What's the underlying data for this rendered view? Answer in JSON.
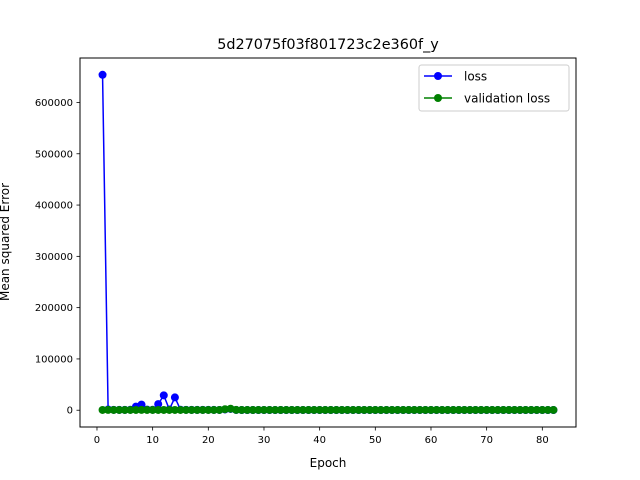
{
  "chart_data": {
    "type": "line",
    "title": "5d27075f03f801723c2e360f_y",
    "xlabel": "Epoch",
    "ylabel": "Mean squared Error",
    "xlim": [
      -3.05,
      86.05
    ],
    "ylim": [
      -32700,
      686700
    ],
    "xticks": [
      0,
      10,
      20,
      30,
      40,
      50,
      60,
      70,
      80
    ],
    "yticks": [
      0,
      100000,
      200000,
      300000,
      400000,
      500000,
      600000
    ],
    "grid": false,
    "legend_position": "top-right",
    "series": [
      {
        "name": "loss",
        "color": "#0000ff",
        "x": [
          1,
          2,
          3,
          4,
          5,
          6,
          7,
          8,
          9,
          10,
          11,
          12,
          13,
          14,
          15,
          16,
          17,
          18,
          19,
          20,
          21,
          22,
          23,
          24,
          25,
          26,
          27,
          28,
          29,
          30,
          31,
          32,
          33,
          34,
          35,
          36,
          37,
          38,
          39,
          40,
          41,
          42,
          43,
          44,
          45,
          46,
          47,
          48,
          49,
          50,
          51,
          52,
          53,
          54,
          55,
          56,
          57,
          58,
          59,
          60,
          61,
          62,
          63,
          64,
          65,
          66,
          67,
          68,
          69,
          70,
          71,
          72,
          73,
          74,
          75,
          76,
          77,
          78,
          79,
          80,
          81,
          82
        ],
        "values": [
          654000,
          1500,
          800,
          600,
          700,
          900,
          7000,
          11000,
          1200,
          900,
          12000,
          29000,
          1500,
          25000,
          1000,
          800,
          700,
          600,
          700,
          800,
          600,
          500,
          1500,
          2500,
          500,
          400,
          400,
          400,
          400,
          400,
          400,
          400,
          400,
          400,
          400,
          400,
          400,
          400,
          400,
          400,
          400,
          400,
          400,
          400,
          400,
          400,
          400,
          400,
          400,
          400,
          400,
          400,
          400,
          400,
          400,
          400,
          400,
          400,
          400,
          400,
          400,
          400,
          400,
          400,
          400,
          400,
          400,
          400,
          400,
          400,
          400,
          400,
          400,
          400,
          400,
          400,
          400,
          400,
          400,
          400,
          400,
          400
        ]
      },
      {
        "name": "validation loss",
        "color": "#008000",
        "x": [
          1,
          2,
          3,
          4,
          5,
          6,
          7,
          8,
          9,
          10,
          11,
          12,
          13,
          14,
          15,
          16,
          17,
          18,
          19,
          20,
          21,
          22,
          23,
          24,
          25,
          26,
          27,
          28,
          29,
          30,
          31,
          32,
          33,
          34,
          35,
          36,
          37,
          38,
          39,
          40,
          41,
          42,
          43,
          44,
          45,
          46,
          47,
          48,
          49,
          50,
          51,
          52,
          53,
          54,
          55,
          56,
          57,
          58,
          59,
          60,
          61,
          62,
          63,
          64,
          65,
          66,
          67,
          68,
          69,
          70,
          71,
          72,
          73,
          74,
          75,
          76,
          77,
          78,
          79,
          80,
          81,
          82
        ],
        "values": [
          500,
          600,
          500,
          500,
          500,
          500,
          500,
          600,
          500,
          500,
          500,
          500,
          500,
          500,
          500,
          500,
          500,
          500,
          500,
          500,
          500,
          500,
          2000,
          3000,
          600,
          500,
          500,
          500,
          500,
          500,
          500,
          500,
          500,
          500,
          500,
          500,
          500,
          500,
          500,
          500,
          500,
          500,
          500,
          500,
          500,
          500,
          500,
          500,
          500,
          500,
          500,
          500,
          500,
          500,
          500,
          500,
          500,
          500,
          500,
          500,
          500,
          500,
          500,
          500,
          500,
          500,
          500,
          500,
          500,
          500,
          500,
          500,
          500,
          500,
          500,
          500,
          500,
          500,
          500,
          500,
          500,
          500
        ]
      }
    ]
  }
}
